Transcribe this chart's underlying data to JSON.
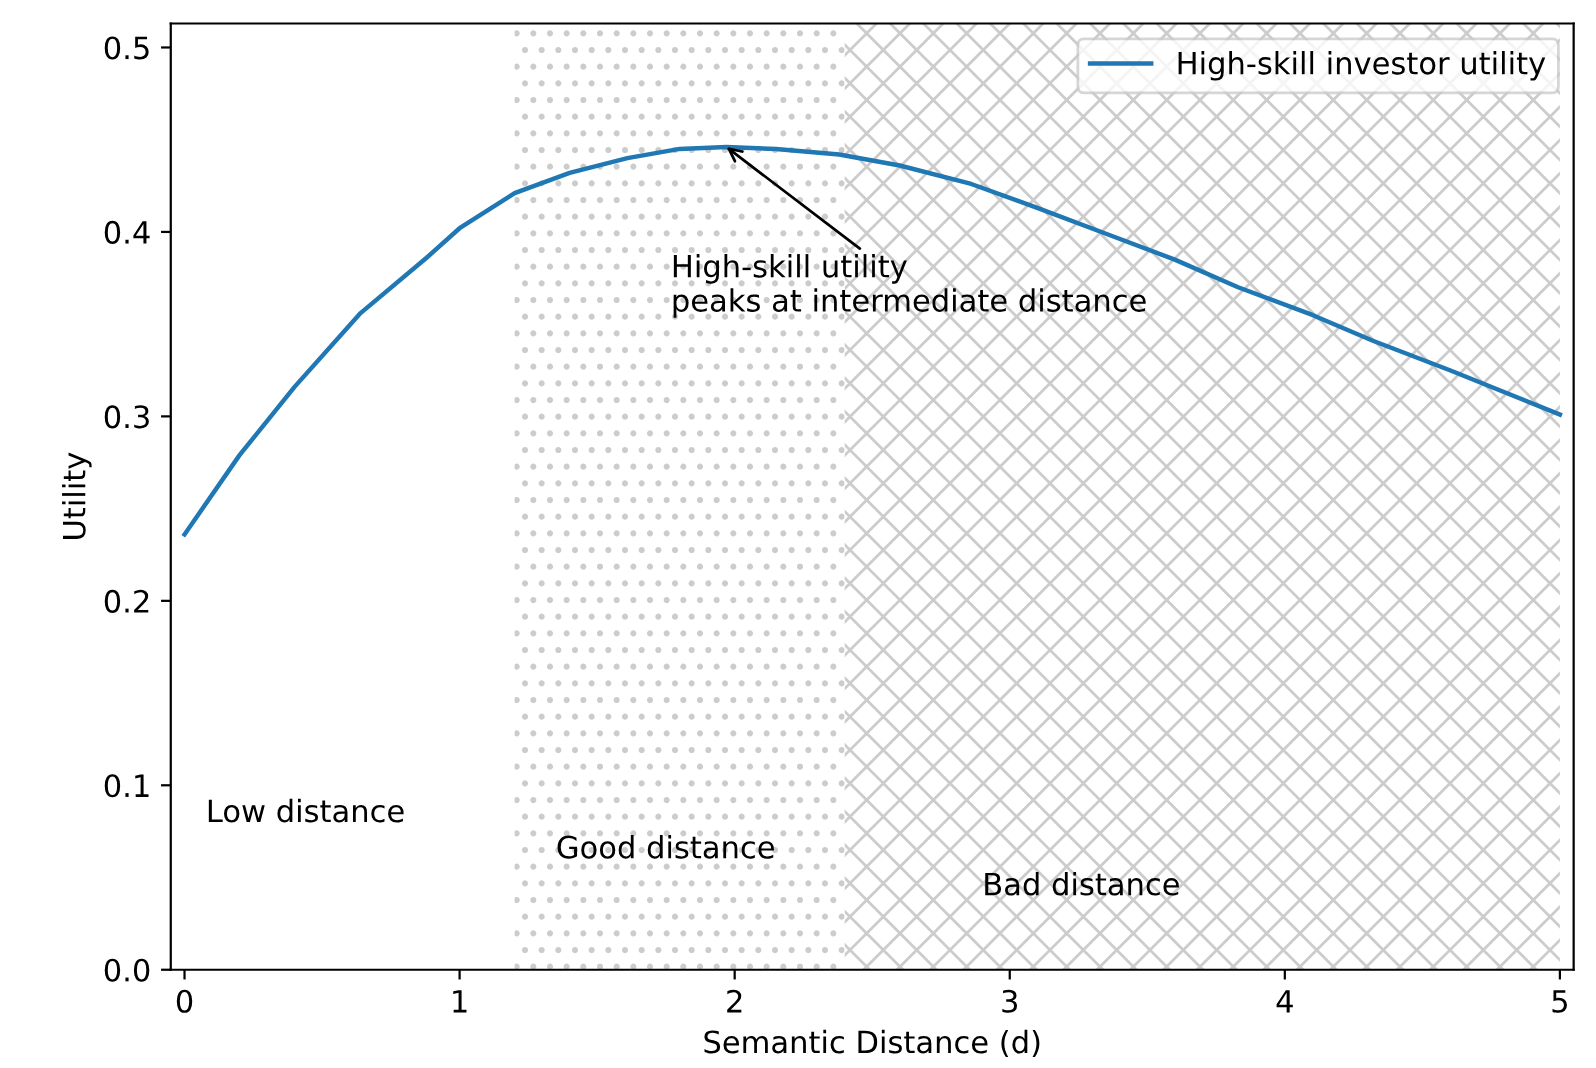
{
  "chart_data": {
    "type": "line",
    "xlabel": "Semantic Distance (d)",
    "ylabel": "Utility",
    "x": [
      0,
      0.2,
      0.4,
      0.64,
      0.88,
      1.0,
      1.2,
      1.4,
      1.61,
      1.8,
      1.97,
      2.15,
      2.38,
      2.6,
      2.86,
      3.1,
      3.35,
      3.6,
      3.83,
      4.1,
      4.32,
      4.6,
      5.0
    ],
    "series": [
      {
        "name": "High-skill investor utility",
        "color": "#1f77b4",
        "values": [
          0.236,
          0.279,
          0.316,
          0.356,
          0.386,
          0.402,
          0.421,
          0.432,
          0.44,
          0.445,
          0.446,
          0.445,
          0.442,
          0.436,
          0.426,
          0.413,
          0.399,
          0.385,
          0.37,
          0.355,
          0.341,
          0.325,
          0.301
        ]
      }
    ],
    "xlim": [
      -0.05,
      5.05
    ],
    "ylim": [
      0,
      0.513
    ],
    "xticks": [
      0,
      1,
      2,
      3,
      4,
      5
    ],
    "yticks": [
      {
        "value": 0,
        "label": "0.0"
      },
      0.1,
      0.2,
      0.3,
      0.4,
      0.5
    ],
    "bands": [
      {
        "axis": "x",
        "from": 1.2,
        "to": 2.4,
        "label": "Good distance",
        "color": "#cccccc"
      },
      {
        "axis": "x",
        "from": 2.4,
        "to": 5.0,
        "label": "Bad distance",
        "color": "#cccccc"
      }
    ],
    "annotations": [
      "Low distance",
      {
        "text": "High-skill utility\npeaks at intermediate distance",
        "x": 1.97,
        "y": 0.446
      }
    ],
    "legend": "top right",
    "grid": false,
    "marker": "none",
    "line_style": "solid"
  }
}
